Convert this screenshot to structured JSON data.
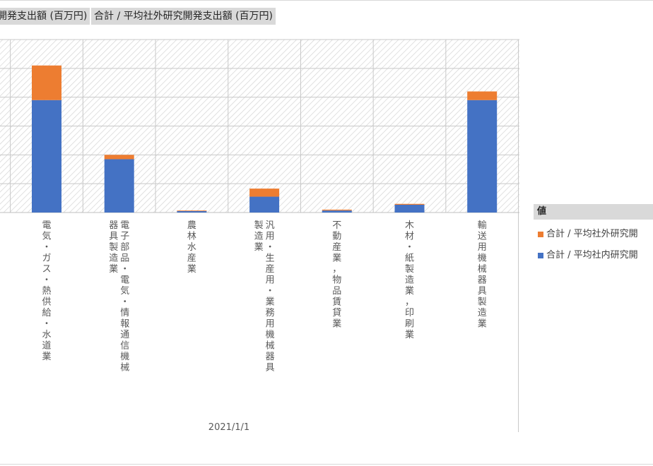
{
  "header": {
    "field_button_1": "開発支出額 (百万円)",
    "field_button_2": "合計 / 平均社外研究開発支出額 (百万円)"
  },
  "legend": {
    "header": "値",
    "items": [
      "合計 / 平均社外研究開",
      "合計 / 平均社内研究開"
    ]
  },
  "chart_data": {
    "type": "bar",
    "stacked": true,
    "xlabel": "2021/1/1",
    "categories": [
      "電気・ガス・熱供給・水道業",
      "電子部品・電気・情報通信機械器具製造業",
      "農林水産業",
      "汎用・生産用・業務用機械器具製造業",
      "不動産業，物品賃貸業",
      "木材・紙製造業，印刷業",
      "輸送用機械器具製造業"
    ],
    "series": [
      {
        "name": "合計 / 平均社内研究開",
        "color": "#4472c4",
        "values": [
          3.9,
          1.85,
          0.05,
          0.55,
          0.07,
          0.27,
          3.9
        ]
      },
      {
        "name": "合計 / 平均社外研究開",
        "color": "#ed7d31",
        "values": [
          1.2,
          0.15,
          0.02,
          0.28,
          0.03,
          0.03,
          0.3
        ]
      }
    ],
    "ylim": [
      0,
      6
    ],
    "grid": true,
    "legend_position": "right"
  }
}
